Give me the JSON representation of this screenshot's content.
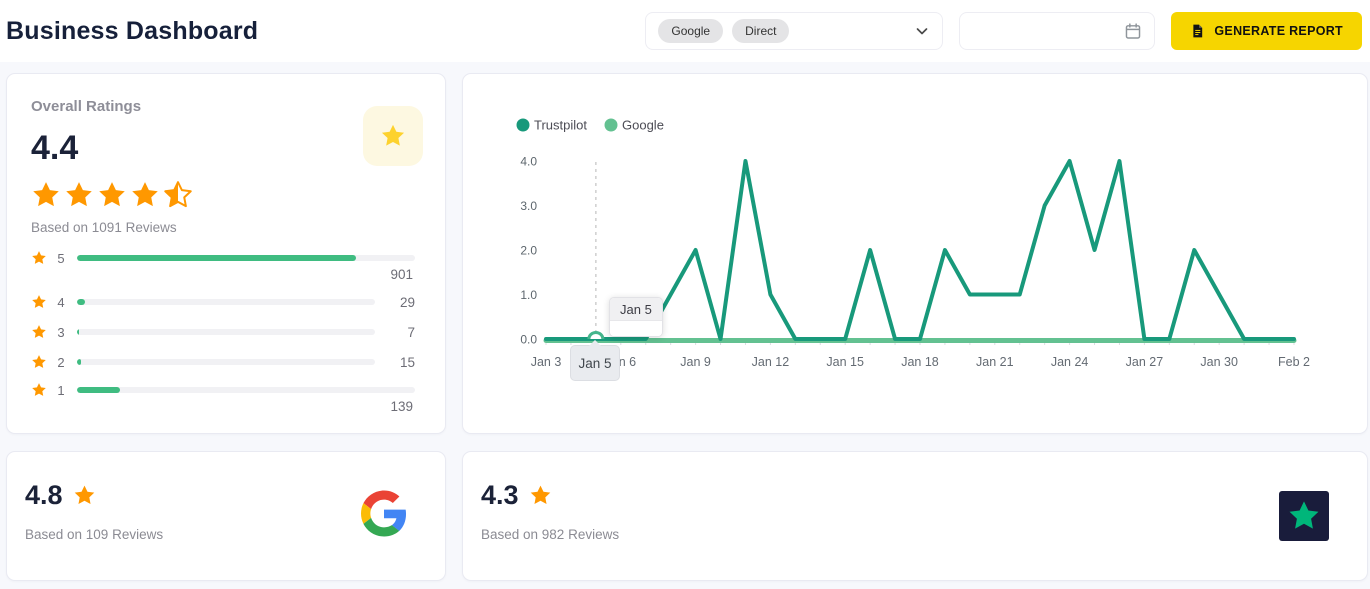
{
  "header": {
    "title": "Business Dashboard",
    "filter": {
      "chips": [
        "Google",
        "Direct"
      ]
    },
    "date_input": {
      "value": "",
      "placeholder": ""
    },
    "generate_label": "GENERATE REPORT"
  },
  "overall": {
    "title": "Overall Ratings",
    "score": "4.4",
    "stars_full": 4,
    "stars_half": true,
    "based_on": "Based on 1091 Reviews",
    "total_reviews": 1091,
    "distribution": [
      {
        "stars": "5",
        "count": "901"
      },
      {
        "stars": "4",
        "count": "29"
      },
      {
        "stars": "3",
        "count": "7"
      },
      {
        "stars": "2",
        "count": "15"
      },
      {
        "stars": "1",
        "count": "139"
      }
    ]
  },
  "chart_data": {
    "type": "line",
    "title": "",
    "xlabel": "",
    "ylabel": "",
    "ylim": [
      0,
      4
    ],
    "yticks": [
      "0.0",
      "1.0",
      "2.0",
      "3.0",
      "4.0"
    ],
    "grid": false,
    "legend_position": "top-left",
    "x_tick_every": 3,
    "x": [
      "Jan 3",
      "Jan 4",
      "Jan 5",
      "Jan 6",
      "Jan 7",
      "Jan 8",
      "Jan 9",
      "Jan 10",
      "Jan 11",
      "Jan 12",
      "Jan 13",
      "Jan 14",
      "Jan 15",
      "Jan 16",
      "Jan 17",
      "Jan 18",
      "Jan 19",
      "Jan 20",
      "Jan 21",
      "Jan 22",
      "Jan 23",
      "Jan 24",
      "Jan 25",
      "Jan 26",
      "Jan 27",
      "Jan 28",
      "Jan 29",
      "Jan 30",
      "Jan 31",
      "Feb 1",
      "Feb 2"
    ],
    "series": [
      {
        "name": "Trustpilot",
        "color": "#18997b",
        "values": [
          0,
          0,
          0,
          0,
          0,
          1,
          2,
          0,
          4,
          1,
          0,
          0,
          0,
          2,
          0,
          0,
          2,
          1,
          1,
          1,
          3,
          4,
          2,
          4,
          0,
          0,
          2,
          1,
          0,
          0,
          0
        ]
      },
      {
        "name": "Google",
        "color": "#63c191",
        "values": [
          0,
          0,
          0,
          0,
          0,
          0,
          0,
          0,
          0,
          0,
          0,
          0,
          0,
          0,
          0,
          0,
          0,
          0,
          0,
          0,
          0,
          0,
          0,
          0,
          0,
          0,
          0,
          0,
          0,
          0,
          0
        ]
      }
    ],
    "hover": {
      "label": "Jan 5",
      "index": 2
    }
  },
  "google_card": {
    "name": "Google",
    "score": "4.8",
    "based_on": "Based on 109 Reviews"
  },
  "trustpilot_card": {
    "name": "Trustpilot",
    "score": "4.3",
    "based_on": "Based on 982 Reviews"
  },
  "icons": [
    "star-icon",
    "half-star-icon",
    "chevron-down-icon",
    "calendar-icon",
    "report-icon",
    "google-logo",
    "trustpilot-logo"
  ],
  "colors": {
    "accent_yellow": "#f6d500",
    "orange": "#ff9800",
    "bar_green": "#3fbc81",
    "navy": "#1b2238",
    "badge_bg": "#fdf8e1",
    "badge_star": "#fdd22e",
    "trustpilot_navy": "#191c3b",
    "trustpilot_green": "#00b67a"
  }
}
